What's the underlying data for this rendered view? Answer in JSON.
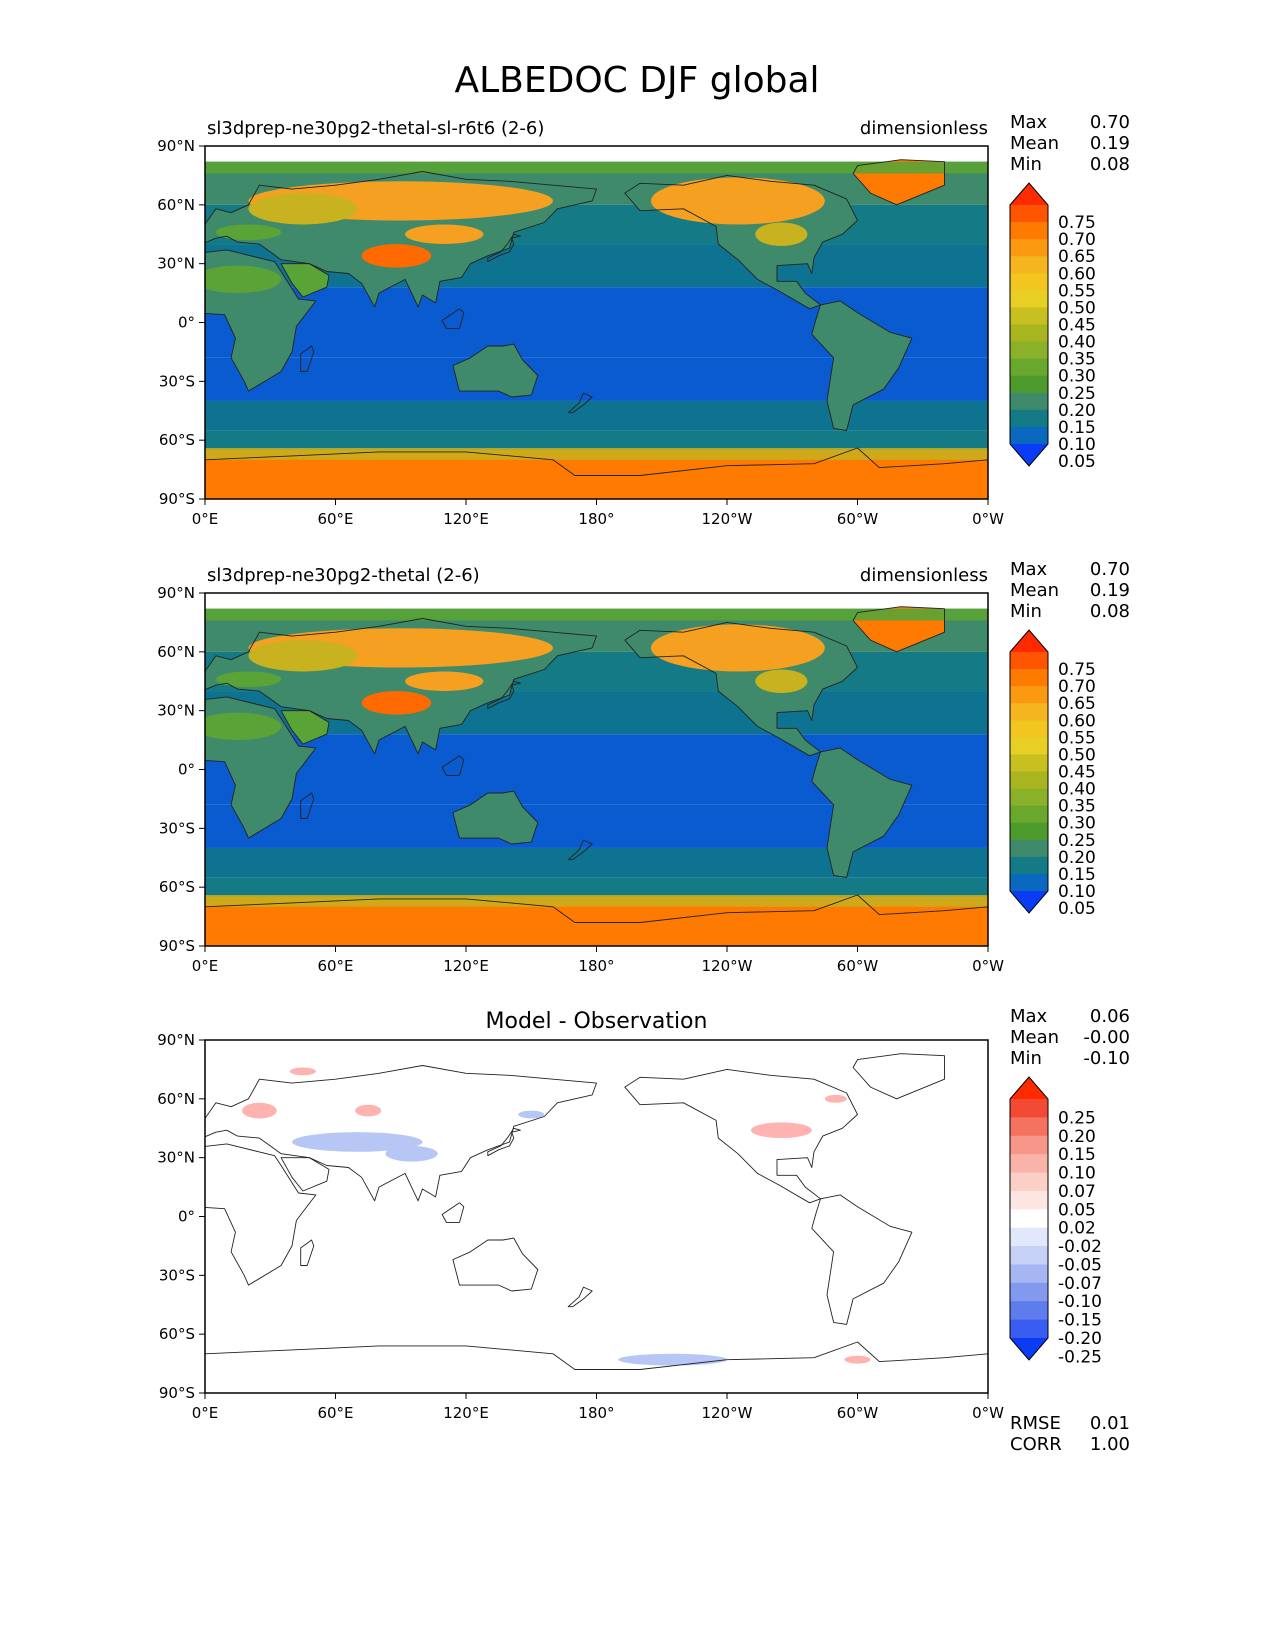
{
  "title": "ALBEDOC DJF global",
  "colors": {
    "ocean_deep": "#0a5bd0",
    "ocean": "#0e7391",
    "land_low": "#3f8a6a",
    "land_mid": "#5aa336",
    "land_high": "#c8b21f",
    "snow": "#f5a021",
    "ice": "#ff7a00",
    "diff_pos": "#ffb3b0",
    "diff_neg": "#b7c7f5"
  },
  "chart_data": [
    {
      "type": "heatmap",
      "left_title": "sl3dprep-ne30pg2-thetal-sl-r6t6 (2-6)",
      "center_title": "",
      "right_title": "dimensionless",
      "x_ticks": [
        "0°E",
        "60°E",
        "120°E",
        "180°",
        "120°W",
        "60°W",
        "0°W"
      ],
      "y_ticks": [
        "90°N",
        "60°N",
        "30°N",
        "0°",
        "30°S",
        "60°S",
        "90°S"
      ],
      "xlim": [
        0,
        360
      ],
      "ylim": [
        -90,
        90
      ],
      "stats_labels": [
        "Max",
        "Mean",
        "Min"
      ],
      "stats_values": [
        "0.70",
        "0.19",
        "0.08"
      ],
      "levels": [
        "0.75",
        "0.70",
        "0.65",
        "0.60",
        "0.55",
        "0.50",
        "0.45",
        "0.40",
        "0.35",
        "0.30",
        "0.25",
        "0.20",
        "0.15",
        "0.10",
        "0.05"
      ],
      "colorbar_colors": [
        "#ff2a00",
        "#ff5500",
        "#ff7a00",
        "#fb9a10",
        "#f5b51e",
        "#f2c51f",
        "#e8cf25",
        "#c8c021",
        "#a9b51f",
        "#8bb02a",
        "#69a82c",
        "#4d9a2d",
        "#3f8a6a",
        "#147b86",
        "#0a68bf",
        "#0a3cf5"
      ],
      "footer_labels": [],
      "footer_values": []
    },
    {
      "type": "heatmap",
      "left_title": "sl3dprep-ne30pg2-thetal (2-6)",
      "center_title": "",
      "right_title": "dimensionless",
      "x_ticks": [
        "0°E",
        "60°E",
        "120°E",
        "180°",
        "120°W",
        "60°W",
        "0°W"
      ],
      "y_ticks": [
        "90°N",
        "60°N",
        "30°N",
        "0°",
        "30°S",
        "60°S",
        "90°S"
      ],
      "xlim": [
        0,
        360
      ],
      "ylim": [
        -90,
        90
      ],
      "stats_labels": [
        "Max",
        "Mean",
        "Min"
      ],
      "stats_values": [
        "0.70",
        "0.19",
        "0.08"
      ],
      "levels": [
        "0.75",
        "0.70",
        "0.65",
        "0.60",
        "0.55",
        "0.50",
        "0.45",
        "0.40",
        "0.35",
        "0.30",
        "0.25",
        "0.20",
        "0.15",
        "0.10",
        "0.05"
      ],
      "colorbar_colors": [
        "#ff2a00",
        "#ff5500",
        "#ff7a00",
        "#fb9a10",
        "#f5b51e",
        "#f2c51f",
        "#e8cf25",
        "#c8c021",
        "#a9b51f",
        "#8bb02a",
        "#69a82c",
        "#4d9a2d",
        "#3f8a6a",
        "#147b86",
        "#0a68bf",
        "#0a3cf5"
      ],
      "footer_labels": [],
      "footer_values": []
    },
    {
      "type": "heatmap",
      "left_title": "",
      "center_title": "Model - Observation",
      "right_title": "",
      "x_ticks": [
        "0°E",
        "60°E",
        "120°E",
        "180°",
        "120°W",
        "60°W",
        "0°W"
      ],
      "y_ticks": [
        "90°N",
        "60°N",
        "30°N",
        "0°",
        "30°S",
        "60°S",
        "90°S"
      ],
      "xlim": [
        0,
        360
      ],
      "ylim": [
        -90,
        90
      ],
      "stats_labels": [
        "Max",
        "Mean",
        "Min"
      ],
      "stats_values": [
        "0.06",
        "-0.00",
        "-0.10"
      ],
      "levels": [
        "0.25",
        "0.20",
        "0.15",
        "0.10",
        "0.07",
        "0.05",
        "0.02",
        "-0.02",
        "-0.05",
        "-0.07",
        "-0.10",
        "-0.15",
        "-0.20",
        "-0.25"
      ],
      "colorbar_colors": [
        "#ff2a00",
        "#f24a35",
        "#f5725f",
        "#f7978a",
        "#fab3a8",
        "#fbcfc6",
        "#fde6e2",
        "#ffffff",
        "#e2e8fb",
        "#c5d1f7",
        "#a6b6f2",
        "#8399ee",
        "#5f7cec",
        "#3a5cf0",
        "#0a3cf5"
      ],
      "footer_labels": [
        "RMSE",
        "CORR"
      ],
      "footer_values": [
        "0.01",
        "1.00"
      ]
    }
  ]
}
